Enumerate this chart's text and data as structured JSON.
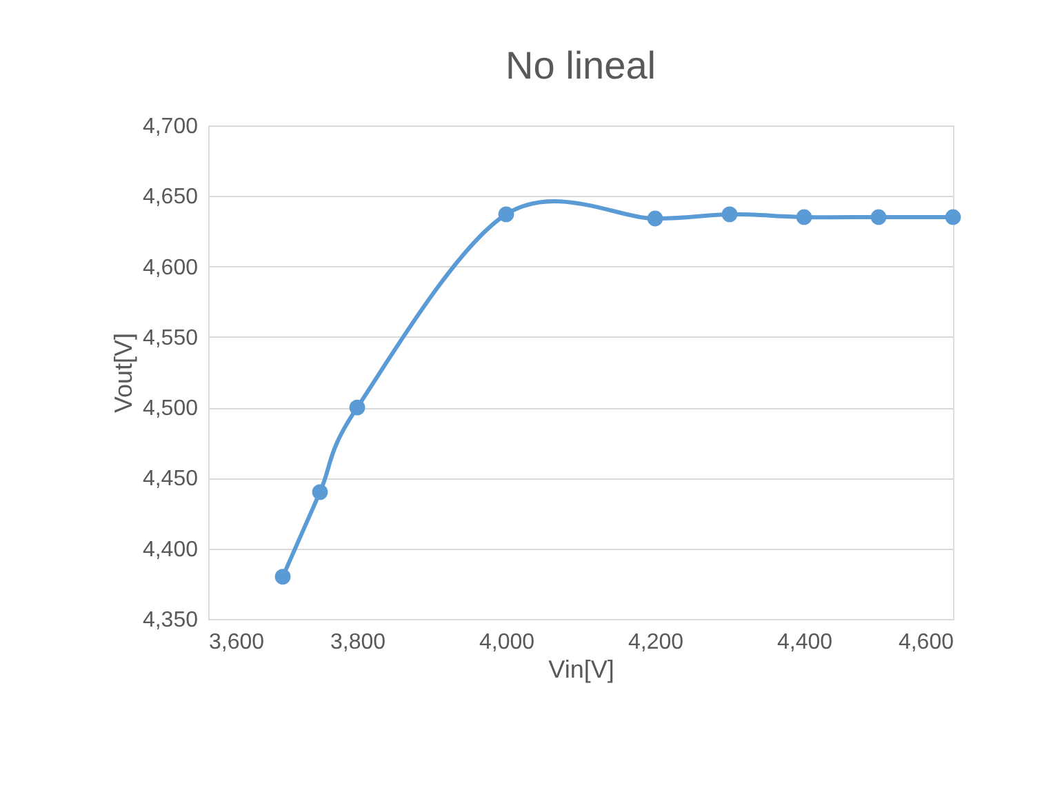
{
  "chart_data": {
    "type": "line",
    "title": "No lineal",
    "xlabel": "Vin[V]",
    "ylabel": "Vout[V]",
    "x": [
      3700,
      3750,
      3800,
      4000,
      4200,
      4300,
      4400,
      4500,
      4600
    ],
    "series": [
      {
        "color": "#5b9bd5",
        "values": [
          4380,
          4440,
          4500,
          4637,
          4634,
          4637,
          4635,
          4635,
          4635
        ]
      }
    ],
    "xlim": [
      3600,
      4600
    ],
    "xticks": [
      {
        "value": 3600,
        "label": "3,600"
      },
      {
        "value": 3800,
        "label": "3,800"
      },
      {
        "value": 4000,
        "label": "4,000"
      },
      {
        "value": 4200,
        "label": "4,200"
      },
      {
        "value": 4400,
        "label": "4,400"
      },
      {
        "value": 4600,
        "label": "4,600"
      }
    ],
    "ylim": [
      4350,
      4700
    ],
    "yticks": [
      {
        "value": 4350,
        "label": "4,350"
      },
      {
        "value": 4400,
        "label": "4,400"
      },
      {
        "value": 4450,
        "label": "4,450"
      },
      {
        "value": 4500,
        "label": "4,500"
      },
      {
        "value": 4550,
        "label": "4,550"
      },
      {
        "value": 4600,
        "label": "4,600"
      },
      {
        "value": 4650,
        "label": "4,650"
      },
      {
        "value": 4700,
        "label": "4,700"
      }
    ],
    "grid": "y",
    "marker": "circle",
    "line_style": "solid"
  }
}
